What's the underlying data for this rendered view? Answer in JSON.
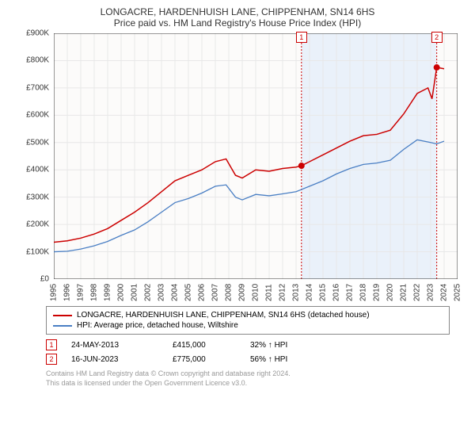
{
  "title": "LONGACRE, HARDENHUISH LANE, CHIPPENHAM, SN14 6HS",
  "subtitle": "Price paid vs. HM Land Registry's House Price Index (HPI)",
  "chart": {
    "type": "line",
    "background_color": "#ffffff",
    "grid_color": "#e8e8e8",
    "plot_bg": "#fcfbfa",
    "highlight_bg": "#eaf1fa",
    "axis_color": "#333333",
    "font_size_axis": 10,
    "ylim": [
      0,
      900000
    ],
    "ytick_step": 100000,
    "yticks": [
      "£0",
      "£100K",
      "£200K",
      "£300K",
      "£400K",
      "£500K",
      "£600K",
      "£700K",
      "£800K",
      "£900K"
    ],
    "xlim": [
      1995,
      2025
    ],
    "xticks": [
      1995,
      1996,
      1997,
      1998,
      1999,
      2000,
      2001,
      2002,
      2003,
      2004,
      2005,
      2006,
      2007,
      2008,
      2009,
      2010,
      2011,
      2012,
      2013,
      2014,
      2015,
      2016,
      2017,
      2018,
      2019,
      2020,
      2021,
      2022,
      2023,
      2024,
      2025
    ],
    "highlight_start": 2013.4,
    "highlight_end": 2023.45,
    "series": [
      {
        "name": "property",
        "color": "#cc0000",
        "width": 1.5,
        "data": [
          [
            1995,
            135000
          ],
          [
            1996,
            140000
          ],
          [
            1997,
            150000
          ],
          [
            1998,
            165000
          ],
          [
            1999,
            185000
          ],
          [
            2000,
            215000
          ],
          [
            2001,
            245000
          ],
          [
            2002,
            280000
          ],
          [
            2003,
            320000
          ],
          [
            2004,
            360000
          ],
          [
            2005,
            380000
          ],
          [
            2006,
            400000
          ],
          [
            2007,
            430000
          ],
          [
            2007.8,
            440000
          ],
          [
            2008.5,
            380000
          ],
          [
            2009,
            370000
          ],
          [
            2010,
            400000
          ],
          [
            2011,
            395000
          ],
          [
            2012,
            405000
          ],
          [
            2013,
            410000
          ],
          [
            2013.4,
            415000
          ],
          [
            2014,
            430000
          ],
          [
            2015,
            455000
          ],
          [
            2016,
            480000
          ],
          [
            2017,
            505000
          ],
          [
            2018,
            525000
          ],
          [
            2019,
            530000
          ],
          [
            2020,
            545000
          ],
          [
            2021,
            605000
          ],
          [
            2022,
            680000
          ],
          [
            2022.8,
            700000
          ],
          [
            2023.1,
            660000
          ],
          [
            2023.45,
            775000
          ],
          [
            2024,
            770000
          ]
        ]
      },
      {
        "name": "hpi",
        "color": "#4a7fc4",
        "width": 1.3,
        "data": [
          [
            1995,
            100000
          ],
          [
            1996,
            102000
          ],
          [
            1997,
            110000
          ],
          [
            1998,
            122000
          ],
          [
            1999,
            138000
          ],
          [
            2000,
            160000
          ],
          [
            2001,
            180000
          ],
          [
            2002,
            210000
          ],
          [
            2003,
            245000
          ],
          [
            2004,
            280000
          ],
          [
            2005,
            295000
          ],
          [
            2006,
            315000
          ],
          [
            2007,
            340000
          ],
          [
            2007.8,
            345000
          ],
          [
            2008.5,
            300000
          ],
          [
            2009,
            290000
          ],
          [
            2010,
            310000
          ],
          [
            2011,
            305000
          ],
          [
            2012,
            312000
          ],
          [
            2013,
            320000
          ],
          [
            2014,
            340000
          ],
          [
            2015,
            360000
          ],
          [
            2016,
            385000
          ],
          [
            2017,
            405000
          ],
          [
            2018,
            420000
          ],
          [
            2019,
            425000
          ],
          [
            2020,
            435000
          ],
          [
            2021,
            475000
          ],
          [
            2022,
            510000
          ],
          [
            2023,
            500000
          ],
          [
            2023.45,
            495000
          ],
          [
            2024,
            505000
          ]
        ]
      }
    ],
    "markers": [
      {
        "n": 1,
        "x": 2013.4,
        "y": 415000,
        "color": "#cc0000"
      },
      {
        "n": 2,
        "x": 2023.45,
        "y": 775000,
        "color": "#cc0000"
      }
    ]
  },
  "legend": [
    {
      "color": "#cc0000",
      "label": "LONGACRE, HARDENHUISH LANE, CHIPPENHAM, SN14 6HS (detached house)"
    },
    {
      "color": "#4a7fc4",
      "label": "HPI: Average price, detached house, Wiltshire"
    }
  ],
  "transactions": [
    {
      "n": "1",
      "color": "#cc0000",
      "date": "24-MAY-2013",
      "price": "£415,000",
      "pct": "32% ↑ HPI"
    },
    {
      "n": "2",
      "color": "#cc0000",
      "date": "16-JUN-2023",
      "price": "£775,000",
      "pct": "56% ↑ HPI"
    }
  ],
  "footer_line1": "Contains HM Land Registry data © Crown copyright and database right 2024.",
  "footer_line2": "This data is licensed under the Open Government Licence v3.0."
}
